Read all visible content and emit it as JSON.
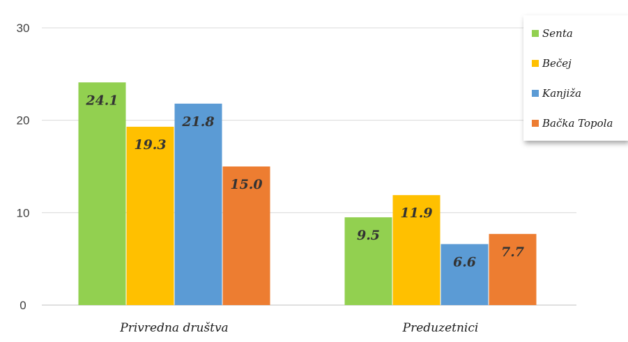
{
  "chart_data": {
    "type": "bar",
    "title": "",
    "xlabel": "",
    "ylabel": "",
    "categories": [
      "Privredna društva",
      "Preduzetnici"
    ],
    "series": [
      {
        "name": "Senta",
        "color": "#92d050",
        "values": [
          24.1,
          9.5
        ]
      },
      {
        "name": "Bečej",
        "color": "#ffc000",
        "values": [
          19.3,
          11.9
        ]
      },
      {
        "name": "Kanjiža",
        "color": "#5b9bd5",
        "values": [
          21.8,
          6.6
        ]
      },
      {
        "name": "Bačka Topola",
        "color": "#ed7d31",
        "values": [
          15.0,
          7.7
        ]
      }
    ],
    "ylim": [
      0,
      30
    ],
    "yticks": [
      "0",
      "10",
      "20",
      "30"
    ],
    "data_labels": [
      [
        "24.1",
        "9.5"
      ],
      [
        "19.3",
        "11.9"
      ],
      [
        "21.8",
        "6.6"
      ],
      [
        "15.0",
        "7.7"
      ]
    ],
    "grid": true,
    "legend": "top-right"
  }
}
